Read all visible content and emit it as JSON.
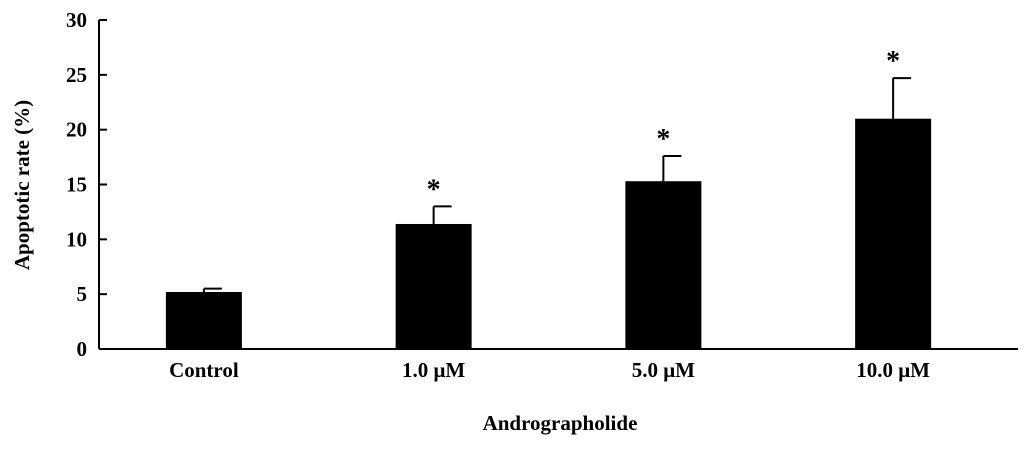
{
  "chart_data": {
    "type": "bar",
    "categories": [
      "Control",
      "1.0 μM",
      "5.0 μM",
      "10.0 μM"
    ],
    "values": [
      5.2,
      11.4,
      15.3,
      21.0
    ],
    "errors": [
      0.3,
      1.6,
      2.3,
      3.7
    ],
    "significance": [
      "",
      "*",
      "*",
      "*"
    ],
    "xlabel": "Andrographolide",
    "ylabel": "Apoptotic rate (%)",
    "ylim": [
      0,
      30
    ],
    "yticks": [
      0,
      5,
      10,
      15,
      20,
      25,
      30
    ],
    "grid": false,
    "bar_color": "#000000"
  }
}
